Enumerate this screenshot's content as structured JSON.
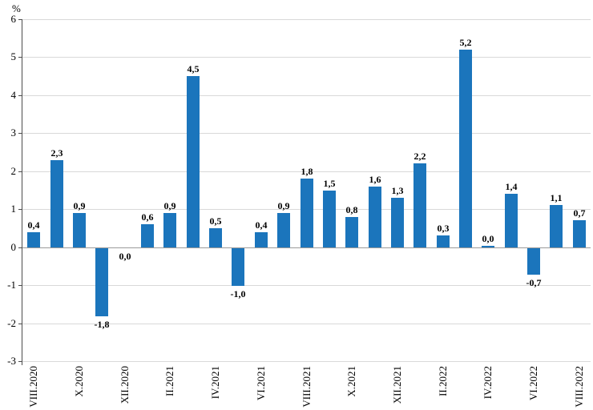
{
  "chart_data": {
    "type": "bar",
    "title": "",
    "xlabel": "",
    "ylabel": "%",
    "ylim": [
      -3,
      6
    ],
    "y_tick_values": [
      6,
      5,
      4,
      3,
      2,
      1,
      0,
      -1,
      -2,
      -3
    ],
    "y_tick_labels": [
      "6",
      "5",
      "4",
      "3",
      "2",
      "1",
      "0",
      "-1",
      "-2",
      "-3"
    ],
    "grid": true,
    "legend_position": "none",
    "decimal_separator": ",",
    "x_tick_every": 2,
    "x_tick_labels": [
      "VIII.2020",
      "X.2020",
      "XII.2020",
      "II.2021",
      "IV.2021",
      "VI.2021",
      "VIII.2021",
      "X.2021",
      "XII.2021",
      "II.2022",
      "IV.2022",
      "VI.2022",
      "VIII.2022"
    ],
    "points": [
      {
        "value": 0.4,
        "label": "0,4"
      },
      {
        "value": 2.3,
        "label": "2,3"
      },
      {
        "value": 0.9,
        "label": "0,9"
      },
      {
        "value": -1.8,
        "label": "-1,8"
      },
      {
        "value": 0.0,
        "label": "0,0",
        "label_side": "below"
      },
      {
        "value": 0.6,
        "label": "0,6"
      },
      {
        "value": 0.9,
        "label": "0,9"
      },
      {
        "value": 4.5,
        "label": "4,5"
      },
      {
        "value": 0.5,
        "label": "0,5"
      },
      {
        "value": -1.0,
        "label": "-1,0"
      },
      {
        "value": 0.4,
        "label": "0,4"
      },
      {
        "value": 0.9,
        "label": "0,9"
      },
      {
        "value": 1.8,
        "label": "1,8"
      },
      {
        "value": 1.5,
        "label": "1,5"
      },
      {
        "value": 0.8,
        "label": "0,8"
      },
      {
        "value": 1.6,
        "label": "1,6"
      },
      {
        "value": 1.3,
        "label": "1,3"
      },
      {
        "value": 2.2,
        "label": "2,2"
      },
      {
        "value": 0.3,
        "label": "0,3"
      },
      {
        "value": 5.2,
        "label": "5,2"
      },
      {
        "value": 0.0,
        "label": "0,0",
        "tiny_bar": true
      },
      {
        "value": 1.4,
        "label": "1,4"
      },
      {
        "value": -0.7,
        "label": "-0,7"
      },
      {
        "value": 1.1,
        "label": "1,1"
      },
      {
        "value": 0.7,
        "label": "0,7"
      }
    ],
    "colors": {
      "bar": "#1b75bc",
      "gridline": "#d9d9d9",
      "zero_line": "#9a9a9a",
      "axis": "#4d4d4d",
      "text": "#000000"
    }
  }
}
